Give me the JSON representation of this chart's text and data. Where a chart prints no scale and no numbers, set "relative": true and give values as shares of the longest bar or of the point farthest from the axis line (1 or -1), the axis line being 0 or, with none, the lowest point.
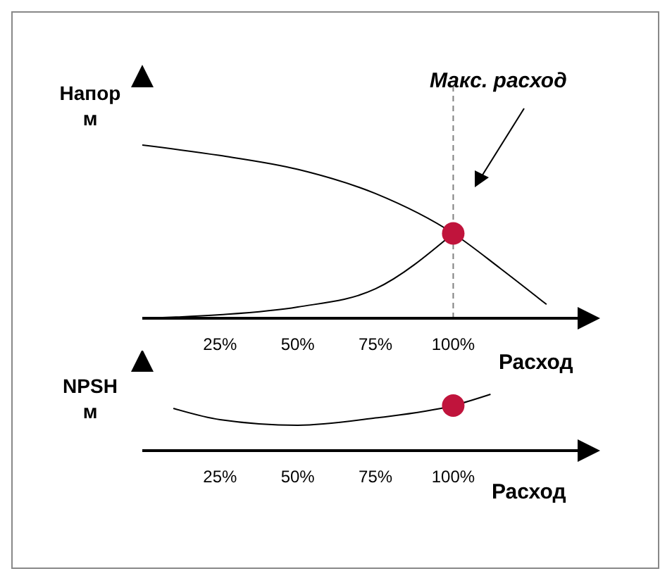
{
  "chart_data": [
    {
      "type": "line",
      "relative": true,
      "ylabel": "Напор\nм",
      "xlabel": "Расход",
      "xlim": [
        0,
        140
      ],
      "xticks": [
        {
          "value": 25,
          "label": "25%"
        },
        {
          "value": 50,
          "label": "50%"
        },
        {
          "value": 75,
          "label": "75%"
        },
        {
          "value": 100,
          "label": "100%"
        }
      ],
      "annotations": [
        "Макс. расход"
      ],
      "ref_lines": [
        {
          "axis": "x",
          "value": 100,
          "color": "#808080",
          "line_style": "dashed"
        }
      ],
      "series": [
        {
          "marker": "none",
          "color": "#000000",
          "x": [
            0,
            25,
            50,
            75,
            100,
            115,
            130
          ],
          "values": [
            1,
            0.94,
            0.86,
            0.72,
            0.49,
            0.29,
            0.08
          ]
        },
        {
          "marker": "none",
          "color": "#000000",
          "x": [
            0,
            25,
            50,
            75,
            100
          ],
          "values": [
            0,
            0.02,
            0.065,
            0.17,
            0.49
          ]
        },
        {
          "type": "scatter",
          "marker": "circle",
          "color": "#c0143c",
          "x": [
            100
          ],
          "values": [
            0.49
          ]
        }
      ]
    },
    {
      "type": "line",
      "relative": true,
      "ylabel": "NPSH\nм",
      "xlabel": "Расход",
      "xlim": [
        0,
        140
      ],
      "xticks": [
        {
          "value": 25,
          "label": "25%"
        },
        {
          "value": 50,
          "label": "50%"
        },
        {
          "value": 75,
          "label": "75%"
        },
        {
          "value": 100,
          "label": "100%"
        }
      ],
      "series": [
        {
          "marker": "none",
          "color": "#000000",
          "x": [
            10,
            25,
            50,
            75,
            100,
            112
          ],
          "values": [
            0.75,
            0.55,
            0.45,
            0.58,
            0.8,
            1
          ]
        },
        {
          "type": "scatter",
          "marker": "circle",
          "color": "#c0143c",
          "x": [
            100
          ],
          "values": [
            0.8
          ]
        }
      ]
    }
  ]
}
